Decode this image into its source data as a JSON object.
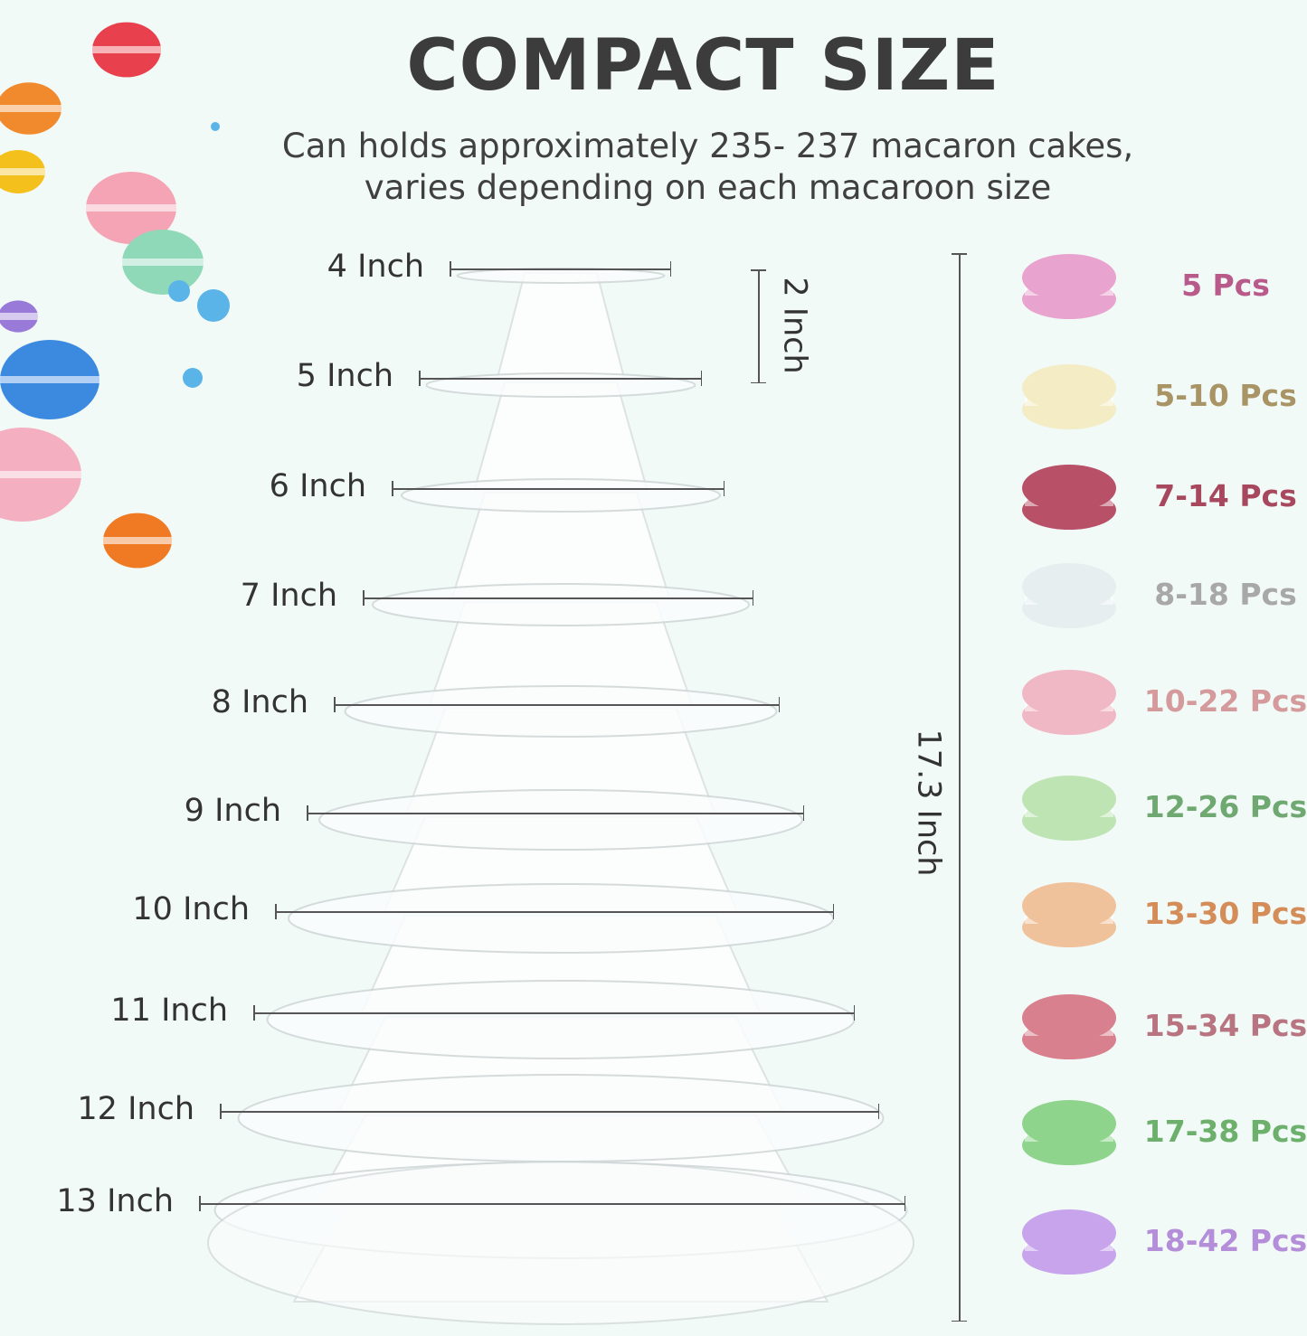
{
  "header": {
    "title": "COMPACT SIZE",
    "subtitle_line1": "Can holds approximately 235- 237 macaron cakes,",
    "subtitle_line2": "varies depending on each macaroon size"
  },
  "tiers": [
    {
      "label": "4 Inch"
    },
    {
      "label": "5 Inch"
    },
    {
      "label": "6 Inch"
    },
    {
      "label": "7 Inch"
    },
    {
      "label": "8 Inch"
    },
    {
      "label": "9 Inch"
    },
    {
      "label": "10 Inch"
    },
    {
      "label": "11 Inch"
    },
    {
      "label": "12 Inch"
    },
    {
      "label": "13 Inch"
    }
  ],
  "dimensions": {
    "tier_spacing": "2 Inch",
    "total_height": "17.3 Inch"
  },
  "capacity": [
    {
      "count": "5 Pcs",
      "color": "#b85a8a",
      "macaron": "#e8a4cf"
    },
    {
      "count": "5-10 Pcs",
      "color": "#a89464",
      "macaron": "#f3ecc4"
    },
    {
      "count": "7-14 Pcs",
      "color": "#a8485e",
      "macaron": "#b85068"
    },
    {
      "count": "8-18 Pcs",
      "color": "#a8a8a8",
      "macaron": "#e6eef0"
    },
    {
      "count": "10-22 Pcs",
      "color": "#d49a9c",
      "macaron": "#f0b8c4"
    },
    {
      "count": "12-26 Pcs",
      "color": "#6fa870",
      "macaron": "#bfe4b4"
    },
    {
      "count": "13-30 Pcs",
      "color": "#d48c58",
      "macaron": "#f0c29c"
    },
    {
      "count": "15-34 Pcs",
      "color": "#b87480",
      "macaron": "#d8808e"
    },
    {
      "count": "17-38 Pcs",
      "color": "#6cb06c",
      "macaron": "#8fd48c"
    },
    {
      "count": "18-42 Pcs",
      "color": "#b48ed8",
      "macaron": "#c8a4ec"
    }
  ]
}
